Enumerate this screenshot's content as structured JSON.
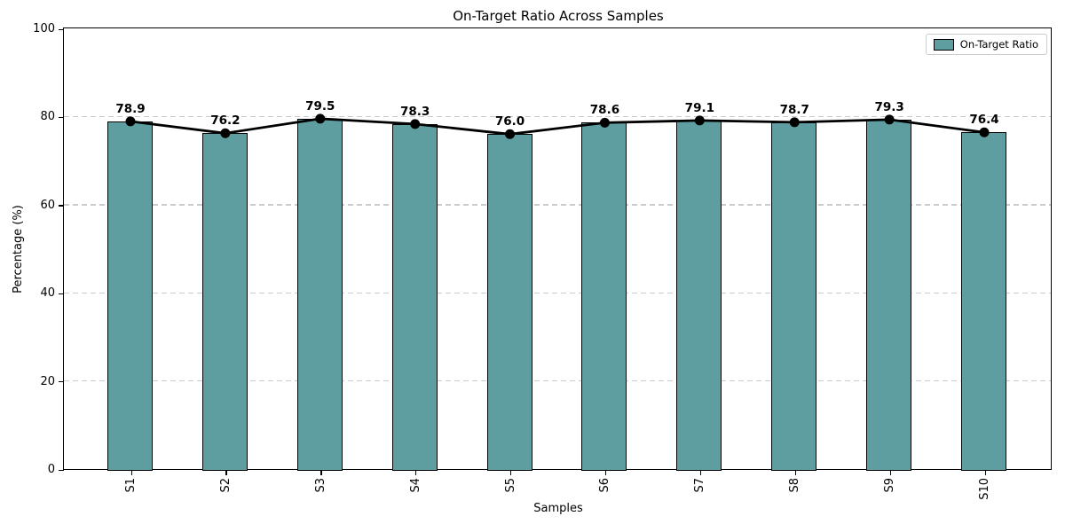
{
  "chart_data": {
    "type": "bar",
    "title": "On-Target Ratio Across Samples",
    "xlabel": "Samples",
    "ylabel": "Percentage (%)",
    "categories": [
      "S1",
      "S2",
      "S3",
      "S4",
      "S5",
      "S6",
      "S7",
      "S8",
      "S9",
      "S10"
    ],
    "series": [
      {
        "name": "On-Target Ratio",
        "render": "bar-with-line-markers",
        "values": [
          78.9,
          76.2,
          79.5,
          78.3,
          76.0,
          78.6,
          79.1,
          78.7,
          79.3,
          76.4
        ]
      }
    ],
    "value_labels": [
      "78.9",
      "76.2",
      "79.5",
      "78.3",
      "76.0",
      "78.6",
      "79.1",
      "78.7",
      "79.3",
      "76.4"
    ],
    "ylim": [
      0,
      100
    ],
    "yticks": [
      0,
      20,
      40,
      60,
      80,
      100
    ],
    "grid": "horizontal-dashed",
    "legend_position": "upper right",
    "colors": {
      "bar_fill": "#5f9ea0",
      "bar_edge": "#000000",
      "line": "#000000",
      "marker": "#000000",
      "grid": "#cbcbcb",
      "text": "#000000"
    }
  }
}
